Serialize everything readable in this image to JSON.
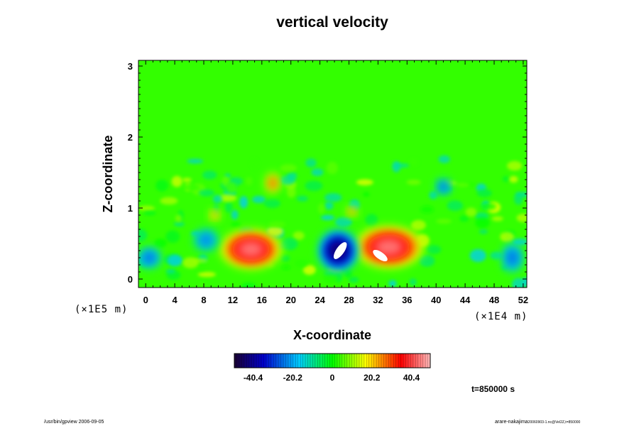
{
  "chart_data": {
    "type": "heatmap",
    "title": "vertical velocity",
    "xlabel": "X-coordinate",
    "ylabel": "Z-coordinate",
    "x_scale_label": "(×1E4 m)",
    "y_scale_label": "(×1E5 m)",
    "xlim": [
      -1,
      52.5
    ],
    "ylim": [
      -0.12,
      3.08
    ],
    "x_ticks": [
      0,
      4,
      8,
      12,
      16,
      20,
      24,
      28,
      32,
      36,
      40,
      44,
      48,
      52
    ],
    "y_ticks": [
      0,
      1,
      2,
      3
    ],
    "colorbar": {
      "range": [
        -50,
        50
      ],
      "ticks": [
        -40.4,
        -20.2,
        0,
        20.2,
        40.4
      ],
      "colors": [
        "#1a0033",
        "#0000cc",
        "#00ccff",
        "#00ff00",
        "#ffff00",
        "#ff0000",
        "#ffbbbb"
      ]
    },
    "time_label": "t=850000 s",
    "features": [
      {
        "name": "updraft-left",
        "x": 14.5,
        "z": 0.4,
        "value": 40
      },
      {
        "name": "downdraft-center",
        "x": 26.5,
        "z": 0.4,
        "value": -45
      },
      {
        "name": "updraft-right",
        "x": 33.5,
        "z": 0.45,
        "value": 42
      },
      {
        "name": "downdraft-mid",
        "x": 3.5,
        "z": 0.6,
        "value": -25
      },
      {
        "name": "updraft-upper",
        "x": 17.5,
        "z": 1.35,
        "value": 28
      },
      {
        "name": "downdraft-upper",
        "x": 41,
        "z": 1.3,
        "value": -22
      }
    ]
  },
  "footer": {
    "left": "/usr/bin/gpview 2006-09-05",
    "right_main": "arare-nakajima",
    "right_small": "20060903-1.nc@Vel2Z,t=850000"
  }
}
